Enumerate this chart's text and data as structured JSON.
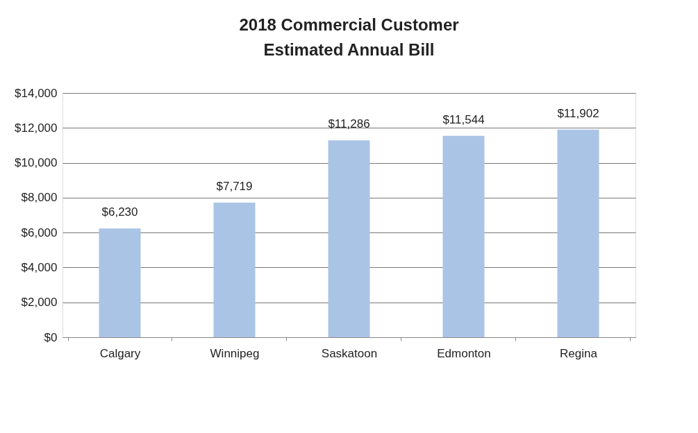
{
  "chart_data": {
    "type": "bar",
    "title": "2018 Commercial Customer\nEstimated Annual Bill",
    "categories": [
      "Calgary",
      "Winnipeg",
      "Saskatoon",
      "Edmonton",
      "Regina"
    ],
    "values": [
      6230,
      7719,
      11286,
      11544,
      11902
    ],
    "value_labels": [
      "$6,230",
      "$7,719",
      "$11,286",
      "$11,544",
      "$11,902"
    ],
    "color": "#aac4e6",
    "ylim": [
      0,
      14000
    ],
    "yticks": [
      {
        "value": 0,
        "label": "$0"
      },
      {
        "value": 2000,
        "label": "$2,000"
      },
      {
        "value": 4000,
        "label": "$4,000"
      },
      {
        "value": 6000,
        "label": "$6,000"
      },
      {
        "value": 8000,
        "label": "$8,000"
      },
      {
        "value": 10000,
        "label": "$10,000"
      },
      {
        "value": 12000,
        "label": "$12,000"
      },
      {
        "value": 14000,
        "label": "$14,000"
      }
    ],
    "grid": "y"
  }
}
